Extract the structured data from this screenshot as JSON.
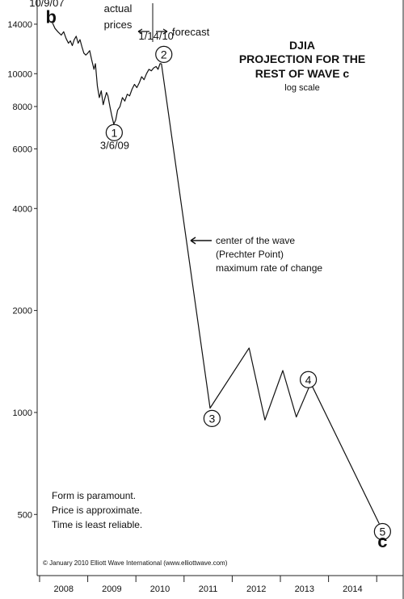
{
  "chart_data": {
    "type": "line",
    "title": "DJIA",
    "subtitle_lines": [
      "PROJECTION FOR THE",
      "REST OF WAVE c"
    ],
    "scale_note": "log scale",
    "log_scale": true,
    "ylim": [
      330,
      16500
    ],
    "xlim": [
      2007.45,
      2015.05
    ],
    "y_ticks": [
      500,
      1000,
      2000,
      4000,
      6000,
      8000,
      10000,
      14000
    ],
    "y_tick_labels": [
      "500",
      "1000",
      "2000",
      "4000",
      "6000",
      "8000",
      "10000",
      "14000"
    ],
    "x_tick_labels": [
      "2008",
      "2009",
      "2010",
      "2011",
      "2012",
      "2013",
      "2014"
    ],
    "x_tick_centers": [
      2008.0,
      2009.0,
      2010.0,
      2011.0,
      2012.0,
      2013.0,
      2014.0
    ],
    "series": [
      {
        "segment": "actual",
        "points": [
          [
            2007.77,
            14100
          ],
          [
            2007.82,
            13600
          ],
          [
            2007.88,
            13300
          ],
          [
            2007.95,
            13000
          ],
          [
            2008.0,
            13300
          ],
          [
            2008.05,
            12700
          ],
          [
            2008.1,
            12300
          ],
          [
            2008.14,
            12500
          ],
          [
            2008.18,
            12100
          ],
          [
            2008.22,
            12600
          ],
          [
            2008.26,
            12900
          ],
          [
            2008.3,
            12300
          ],
          [
            2008.34,
            12600
          ],
          [
            2008.38,
            12000
          ],
          [
            2008.42,
            11500
          ],
          [
            2008.46,
            11350
          ],
          [
            2008.5,
            11500
          ],
          [
            2008.54,
            11700
          ],
          [
            2008.58,
            11000
          ],
          [
            2008.63,
            10300
          ],
          [
            2008.66,
            10700
          ],
          [
            2008.7,
            9200
          ],
          [
            2008.74,
            8500
          ],
          [
            2008.78,
            8900
          ],
          [
            2008.82,
            8100
          ],
          [
            2008.86,
            8500
          ],
          [
            2008.89,
            8800
          ],
          [
            2008.92,
            8600
          ],
          [
            2008.96,
            8000
          ],
          [
            2009.0,
            7500
          ],
          [
            2009.04,
            7100
          ],
          [
            2009.08,
            7300
          ],
          [
            2009.12,
            7800
          ],
          [
            2009.17,
            8000
          ],
          [
            2009.22,
            8500
          ],
          [
            2009.27,
            8300
          ],
          [
            2009.32,
            8700
          ],
          [
            2009.37,
            8600
          ],
          [
            2009.42,
            9000
          ],
          [
            2009.47,
            9300
          ],
          [
            2009.52,
            9100
          ],
          [
            2009.57,
            9400
          ],
          [
            2009.62,
            9800
          ],
          [
            2009.67,
            9600
          ],
          [
            2009.72,
            10000
          ],
          [
            2009.77,
            10300
          ],
          [
            2009.82,
            10200
          ],
          [
            2009.87,
            10400
          ],
          [
            2009.92,
            10500
          ],
          [
            2009.96,
            10300
          ],
          [
            2010.0,
            10700
          ],
          [
            2010.03,
            10700
          ]
        ]
      },
      {
        "segment": "forecast",
        "points": [
          [
            2010.03,
            10700
          ],
          [
            2011.04,
            1030
          ],
          [
            2011.85,
            1550
          ],
          [
            2012.18,
            950
          ],
          [
            2012.55,
            1330
          ],
          [
            2012.83,
            970
          ],
          [
            2013.13,
            1220
          ],
          [
            2014.55,
            470
          ]
        ]
      }
    ],
    "wave_labels": [
      {
        "text": "b",
        "x": 2007.74,
        "y": 14100
      },
      {
        "text": "1",
        "x": 2009.05,
        "y": 6700
      },
      {
        "text": "2",
        "x": 2010.08,
        "y": 11400
      },
      {
        "text": "3",
        "x": 2011.08,
        "y": 960
      },
      {
        "text": "4",
        "x": 2013.08,
        "y": 1250
      },
      {
        "text": "5",
        "x": 2014.62,
        "y": 445
      },
      {
        "text": "c",
        "x": 2014.62,
        "y": 400
      }
    ],
    "date_annotations": [
      {
        "text": "10/9/07",
        "x": 2007.65,
        "y": 15800
      },
      {
        "text": "1/14/10",
        "x": 2009.92,
        "y": 12600
      },
      {
        "text": "3/6/09",
        "x": 2009.06,
        "y": 6000
      }
    ],
    "divider_label_left": [
      "actual",
      "prices"
    ],
    "divider_label_right": "forecast",
    "center_note": [
      "center of the wave",
      "(Prechter Point)",
      "maximum rate of change"
    ],
    "disclaimer_lines": [
      "Form is paramount.",
      "Price is approximate.",
      "Time is least reliable."
    ],
    "copyright": "© January 2010 Elliott Wave International (www.elliottwave.com)"
  }
}
